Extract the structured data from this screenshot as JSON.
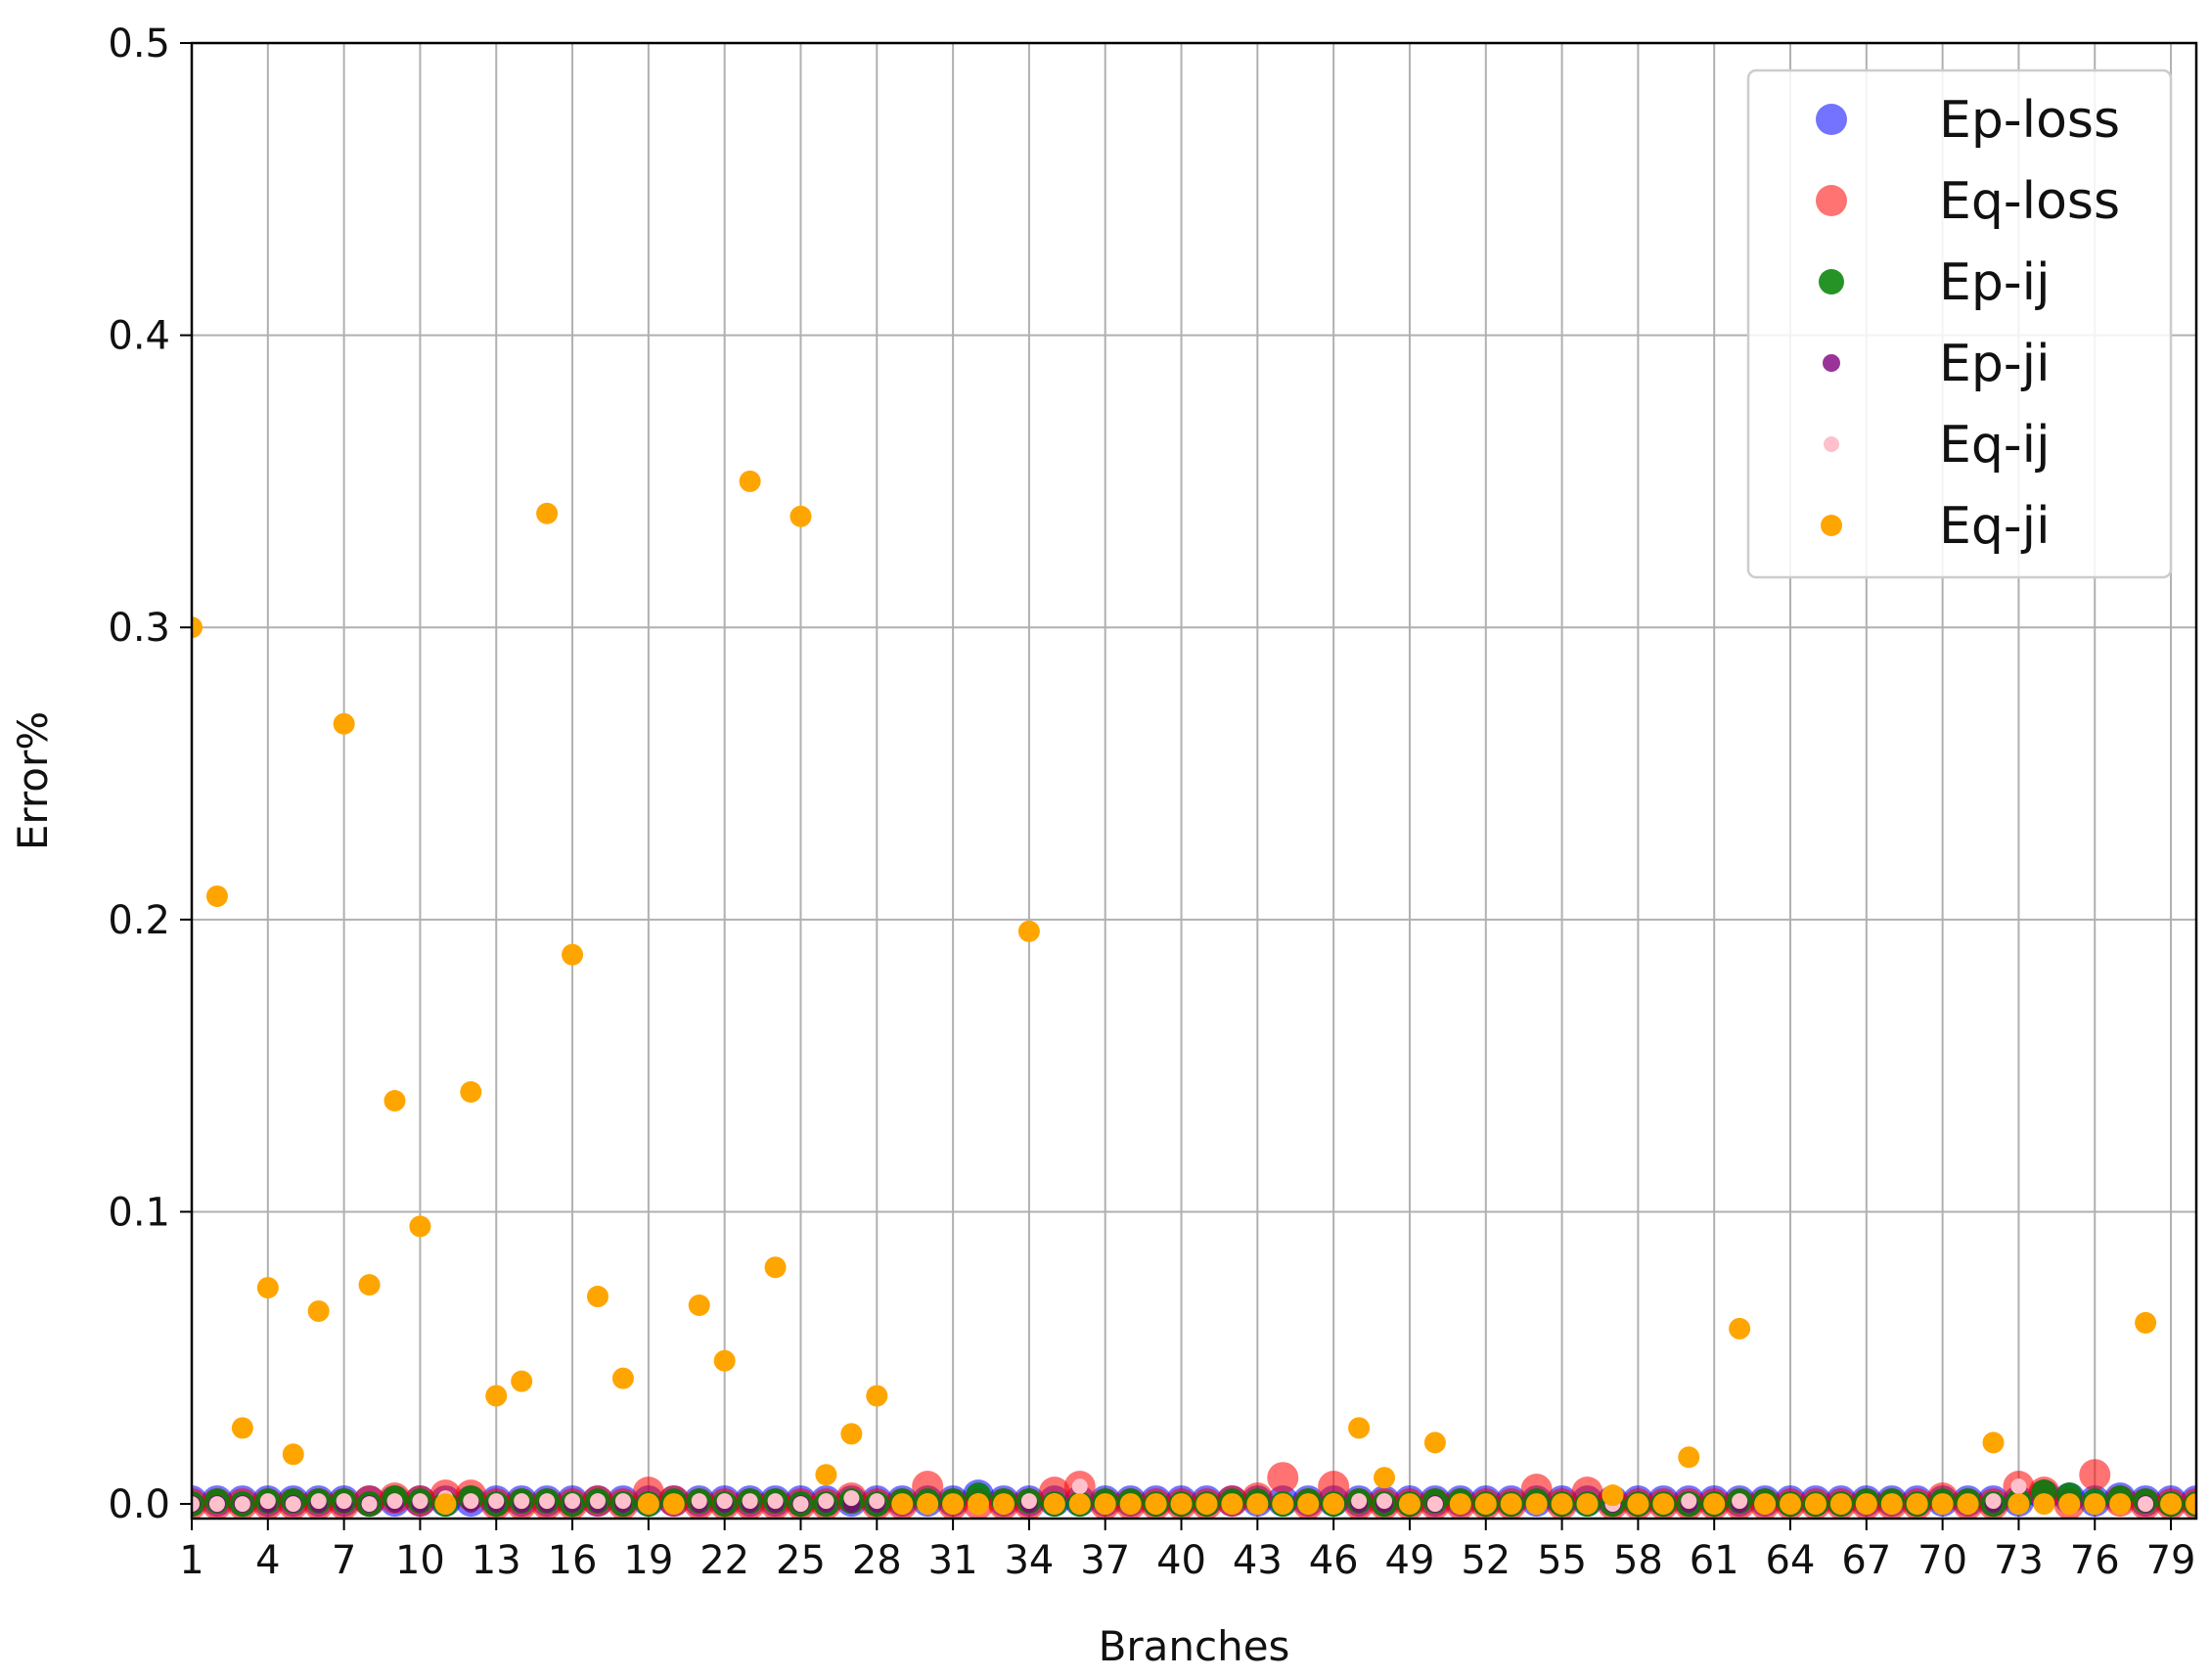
{
  "chart_data": {
    "type": "scatter",
    "title": "",
    "xlabel": "Branches",
    "ylabel": "Error%",
    "xlim": [
      1,
      80
    ],
    "ylim": [
      -0.005,
      0.5
    ],
    "x_ticks": [
      1,
      4,
      7,
      10,
      13,
      16,
      19,
      22,
      25,
      28,
      31,
      34,
      37,
      40,
      43,
      46,
      49,
      52,
      55,
      58,
      61,
      64,
      67,
      70,
      73,
      76,
      79
    ],
    "y_ticks": [
      0.0,
      0.1,
      0.2,
      0.3,
      0.4,
      0.5
    ],
    "y_tick_labels": [
      "0.0",
      "0.1",
      "0.2",
      "0.3",
      "0.4",
      "0.5"
    ],
    "grid": true,
    "legend_position": "top-right",
    "x": [
      1,
      2,
      3,
      4,
      5,
      6,
      7,
      8,
      9,
      10,
      11,
      12,
      13,
      14,
      15,
      16,
      17,
      18,
      19,
      20,
      21,
      22,
      23,
      24,
      25,
      26,
      27,
      28,
      29,
      30,
      31,
      32,
      33,
      34,
      35,
      36,
      37,
      38,
      39,
      40,
      41,
      42,
      43,
      44,
      45,
      46,
      47,
      48,
      49,
      50,
      51,
      52,
      53,
      54,
      55,
      56,
      57,
      58,
      59,
      60,
      61,
      62,
      63,
      64,
      65,
      66,
      67,
      68,
      69,
      70,
      71,
      72,
      73,
      74,
      75,
      76,
      77,
      78,
      79,
      80
    ],
    "series": [
      {
        "name": "Ep-loss",
        "color": "#0000ff",
        "alpha": 0.55,
        "size": 16,
        "values": [
          0.001,
          0.001,
          0.001,
          0.001,
          0.001,
          0.001,
          0.001,
          0.001,
          0.001,
          0.001,
          0.001,
          0.001,
          0.001,
          0.001,
          0.001,
          0.001,
          0.001,
          0.001,
          0.001,
          0.001,
          0.001,
          0.001,
          0.001,
          0.001,
          0.001,
          0.001,
          0.001,
          0.001,
          0.001,
          0.001,
          0.001,
          0.003,
          0.001,
          0.001,
          0.001,
          0.001,
          0.001,
          0.001,
          0.001,
          0.001,
          0.001,
          0.001,
          0.001,
          0.001,
          0.001,
          0.001,
          0.001,
          0.001,
          0.001,
          0.001,
          0.001,
          0.001,
          0.001,
          0.001,
          0.001,
          0.001,
          0.001,
          0.001,
          0.001,
          0.001,
          0.001,
          0.001,
          0.001,
          0.001,
          0.001,
          0.001,
          0.001,
          0.001,
          0.001,
          0.001,
          0.001,
          0.001,
          0.001,
          0.003,
          0.002,
          0.001,
          0.002,
          0.001,
          0.001,
          0.001
        ]
      },
      {
        "name": "Eq-loss",
        "color": "#ff0000",
        "alpha": 0.55,
        "size": 16,
        "values": [
          0.0,
          0.0,
          0.0,
          0.0,
          0.0,
          0.0,
          0.0,
          0.001,
          0.002,
          0.001,
          0.003,
          0.003,
          0.0,
          0.0,
          0.0,
          0.0,
          0.001,
          0.0,
          0.004,
          0.001,
          0.0,
          0.0,
          0.0,
          0.0,
          0.0,
          0.0,
          0.002,
          0.0,
          0.0,
          0.006,
          0.0,
          0.0,
          0.0,
          0.0,
          0.004,
          0.006,
          0.0,
          0.0,
          0.0,
          0.0,
          0.0,
          0.001,
          0.002,
          0.009,
          0.0,
          0.006,
          0.0,
          0.0,
          0.0,
          0.0,
          0.0,
          0.0,
          0.0,
          0.005,
          0.0,
          0.004,
          0.0,
          0.0,
          0.0,
          0.0,
          0.0,
          0.0,
          0.0,
          0.0,
          0.0,
          0.0,
          0.0,
          0.0,
          0.0,
          0.002,
          0.0,
          0.0,
          0.006,
          0.004,
          0.0,
          0.01,
          0.001,
          0.0,
          0.0,
          0.0
        ]
      },
      {
        "name": "Ep-ij",
        "color": "#008000",
        "alpha": 0.85,
        "size": 13,
        "values": [
          0.0,
          0.001,
          0.0,
          0.001,
          0.001,
          0.001,
          0.001,
          0.0,
          0.002,
          0.001,
          0.0,
          0.002,
          0.0,
          0.001,
          0.001,
          0.0,
          0.001,
          0.0,
          0.0,
          0.001,
          0.001,
          0.0,
          0.001,
          0.001,
          0.0,
          0.0,
          0.001,
          0.0,
          0.001,
          0.001,
          0.001,
          0.003,
          0.001,
          0.001,
          0.0,
          0.0,
          0.001,
          0.001,
          0.0,
          0.0,
          0.0,
          0.001,
          0.001,
          0.0,
          0.001,
          0.0,
          0.001,
          0.0,
          0.0,
          0.001,
          0.001,
          0.0,
          0.0,
          0.001,
          0.0,
          0.0,
          0.0,
          0.0,
          0.0,
          0.0,
          0.0,
          0.001,
          0.001,
          0.0,
          0.0,
          0.0,
          0.001,
          0.001,
          0.0,
          0.001,
          0.001,
          0.0,
          0.001,
          0.004,
          0.003,
          0.001,
          0.002,
          0.001,
          0.0,
          0.0
        ]
      },
      {
        "name": "Ep-ji",
        "color": "#800080",
        "alpha": 0.8,
        "size": 9,
        "values": [
          0.0,
          0.0,
          0.0,
          0.0,
          0.0,
          0.0,
          0.0,
          0.0,
          0.0,
          0.0,
          0.0,
          0.0,
          0.0,
          0.0,
          0.0,
          0.0,
          0.0,
          0.0,
          0.0,
          0.0,
          0.0,
          0.0,
          0.0,
          0.0,
          0.0,
          0.0,
          0.0,
          0.0,
          0.0,
          0.0,
          0.0,
          0.0,
          0.0,
          0.0,
          0.0,
          0.0,
          0.0,
          0.0,
          0.0,
          0.0,
          0.0,
          0.0,
          0.0,
          0.0,
          0.0,
          0.0,
          0.0,
          0.0,
          0.0,
          0.0,
          0.0,
          0.0,
          0.0,
          0.0,
          0.0,
          0.0,
          0.0,
          0.0,
          0.0,
          0.0,
          0.0,
          0.0,
          0.0,
          0.0,
          0.0,
          0.0,
          0.0,
          0.0,
          0.0,
          0.0,
          0.0,
          0.0,
          0.0,
          0.0,
          0.0,
          0.0,
          0.0,
          0.0,
          0.0,
          0.0
        ]
      },
      {
        "name": "Eq-ij",
        "color": "#ffc0cb",
        "alpha": 1.0,
        "size": 8,
        "values": [
          0.0,
          0.0,
          0.0,
          0.001,
          0.0,
          0.001,
          0.001,
          0.0,
          0.001,
          0.001,
          0.002,
          0.001,
          0.001,
          0.001,
          0.001,
          0.001,
          0.001,
          0.001,
          0.001,
          0.0,
          0.001,
          0.001,
          0.001,
          0.001,
          0.0,
          0.001,
          0.002,
          0.001,
          0.0,
          0.001,
          0.0,
          0.001,
          0.0,
          0.001,
          0.001,
          0.006,
          0.0,
          0.0,
          0.0,
          0.0,
          0.0,
          0.0,
          0.0,
          0.0,
          0.0,
          0.001,
          0.001,
          0.001,
          0.0,
          0.0,
          0.0,
          0.0,
          0.0,
          0.0,
          0.0,
          0.0,
          0.0,
          0.0,
          0.0,
          0.001,
          0.0,
          0.001,
          0.0,
          0.0,
          0.0,
          0.0,
          0.0,
          0.0,
          0.0,
          0.0,
          0.0,
          0.001,
          0.006,
          0.0,
          0.0,
          0.0,
          0.0,
          0.0,
          0.0,
          0.0
        ]
      },
      {
        "name": "Eq-ji",
        "color": "#ffa500",
        "alpha": 1.0,
        "size": 11,
        "values": [
          0.3,
          0.208,
          0.026,
          0.074,
          0.017,
          0.066,
          0.267,
          0.075,
          0.138,
          0.095,
          0.0,
          0.141,
          0.037,
          0.042,
          0.339,
          0.188,
          0.071,
          0.043,
          0.0,
          0.0,
          0.068,
          0.049,
          0.35,
          0.081,
          0.338,
          0.01,
          0.024,
          0.037,
          0.0,
          0.0,
          0.0,
          0.0,
          0.0,
          0.196,
          0.0,
          0.0,
          0.0,
          0.0,
          0.0,
          0.0,
          0.0,
          0.0,
          0.0,
          0.0,
          0.0,
          0.0,
          0.026,
          0.009,
          0.0,
          0.021,
          0.0,
          0.0,
          0.0,
          0.0,
          0.0,
          0.0,
          0.003,
          0.0,
          0.0,
          0.016,
          0.0,
          0.06,
          0.0,
          0.0,
          0.0,
          0.0,
          0.0,
          0.0,
          0.0,
          0.0,
          0.0,
          0.021,
          0.0,
          0.0,
          0.0,
          0.0,
          0.0,
          0.062,
          0.0,
          0.0
        ]
      }
    ]
  }
}
